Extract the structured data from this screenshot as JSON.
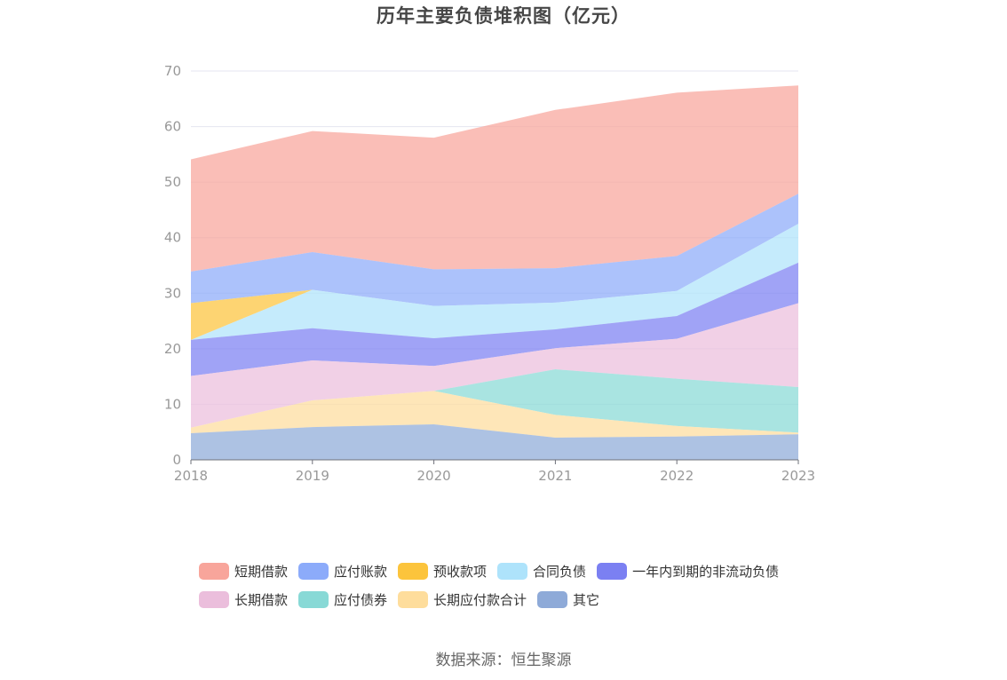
{
  "chart_data": {
    "type": "area",
    "stacked": true,
    "title": "历年主要负债堆积图（亿元）",
    "source": "数据来源：恒生聚源",
    "xlabel": "",
    "ylabel": "",
    "x": [
      "2018",
      "2019",
      "2020",
      "2021",
      "2022",
      "2023"
    ],
    "ylim": [
      0,
      70
    ],
    "yticks": [
      "0",
      "10",
      "20",
      "30",
      "40",
      "50",
      "60",
      "70"
    ],
    "grid": true,
    "legend_position": "bottom",
    "series": [
      {
        "name": "短期借款",
        "color": "#f8a59b",
        "values": [
          20.2,
          21.8,
          23.7,
          28.5,
          29.4,
          19.5
        ]
      },
      {
        "name": "应付账款",
        "color": "#8cabfa",
        "values": [
          5.7,
          6.8,
          6.6,
          6.2,
          6.3,
          5.4
        ]
      },
      {
        "name": "预收款项",
        "color": "#fcc43c",
        "values": [
          6.6,
          0.0,
          0.0,
          0.0,
          0.0,
          0.0
        ]
      },
      {
        "name": "合同负债",
        "color": "#aee3fb",
        "values": [
          0.0,
          6.9,
          5.8,
          4.8,
          4.5,
          7.0
        ]
      },
      {
        "name": "一年内到期的非流动负债",
        "color": "#7b80f2",
        "values": [
          6.5,
          5.8,
          5.0,
          3.4,
          4.1,
          7.3
        ]
      },
      {
        "name": "长期借款",
        "color": "#ebbedc",
        "values": [
          9.3,
          7.2,
          4.5,
          3.8,
          7.2,
          15.1
        ]
      },
      {
        "name": "应付债券",
        "color": "#88d9d6",
        "values": [
          0.0,
          0.0,
          0.0,
          8.2,
          8.5,
          8.2
        ]
      },
      {
        "name": "长期应付款合计",
        "color": "#fedd9c",
        "values": [
          1.0,
          4.8,
          6.0,
          4.1,
          1.9,
          0.3
        ]
      },
      {
        "name": "其它",
        "color": "#8eaad8",
        "values": [
          4.8,
          5.9,
          6.4,
          4.0,
          4.2,
          4.6
        ]
      }
    ]
  }
}
